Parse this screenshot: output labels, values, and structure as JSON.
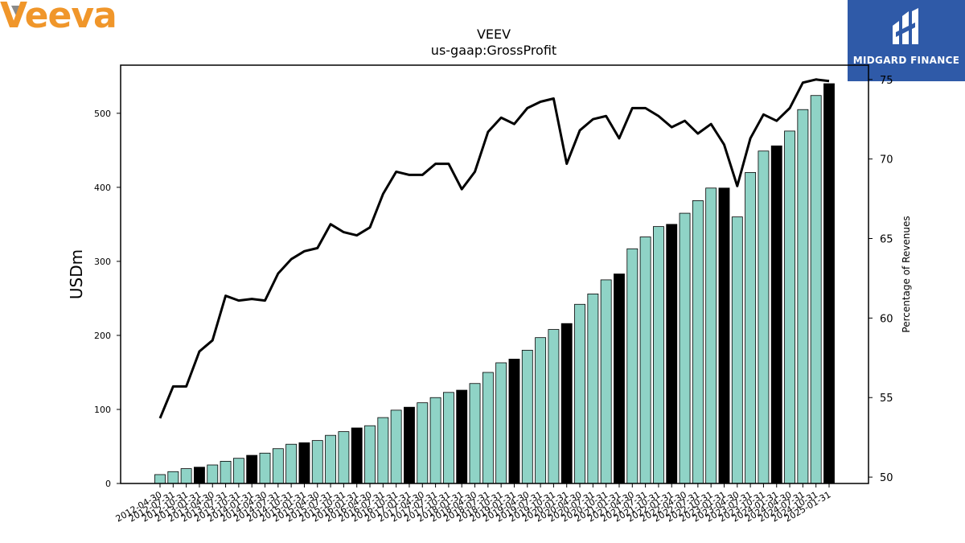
{
  "logos": {
    "left": "Veeva",
    "right": "MIDGARD FINANCE"
  },
  "colors": {
    "bar_normal": "#8fd3c6",
    "bar_highlight": "#000000",
    "line": "#000000",
    "veeva_orange": "#f0962a",
    "midgard_blue": "#2f5aa8"
  },
  "chart_data": {
    "type": "bar",
    "title": "VEEV",
    "subtitle": "us-gaap:GrossProfit",
    "ylabel": "USDm",
    "y2label": "Percentage of Revenues",
    "ylim": [
      0,
      565
    ],
    "y2lim": [
      49.6,
      75.9
    ],
    "yticks": [
      0,
      100,
      200,
      300,
      400,
      500
    ],
    "y2ticks": [
      50,
      55,
      60,
      65,
      70,
      75
    ],
    "grid": false,
    "categories": [
      "2012-04-30",
      "2012-07-31",
      "2012-10-31",
      "2013-01-31",
      "2013-04-30",
      "2013-07-31",
      "2013-10-31",
      "2014-01-31",
      "2014-04-30",
      "2014-07-31",
      "2014-10-31",
      "2015-01-31",
      "2015-04-30",
      "2015-07-31",
      "2015-10-31",
      "2016-01-31",
      "2016-04-30",
      "2016-07-31",
      "2016-10-31",
      "2017-01-31",
      "2017-04-30",
      "2017-07-31",
      "2017-10-31",
      "2018-01-31",
      "2018-04-30",
      "2018-07-31",
      "2018-10-31",
      "2019-01-31",
      "2019-04-30",
      "2019-07-31",
      "2019-10-31",
      "2020-01-31",
      "2020-04-30",
      "2020-07-31",
      "2020-10-31",
      "2021-01-31",
      "2021-04-30",
      "2021-07-31",
      "2021-10-31",
      "2022-01-31",
      "2022-04-30",
      "2022-07-31",
      "2022-10-31",
      "2023-01-31",
      "2023-04-30",
      "2023-07-31",
      "2023-10-31",
      "2024-01-31",
      "2024-04-30",
      "2024-07-31",
      "2024-10-31",
      "2025-01-31"
    ],
    "series": [
      {
        "type": "bar",
        "values": [
          12,
          16,
          20,
          22,
          25,
          30,
          34,
          38,
          41,
          47,
          53,
          55,
          58,
          65,
          70,
          75,
          78,
          89,
          99,
          103,
          109,
          116,
          123,
          126,
          135,
          150,
          163,
          168,
          180,
          197,
          208,
          216,
          242,
          256,
          275,
          283,
          317,
          333,
          347,
          350,
          365,
          382,
          399,
          399,
          360,
          420,
          449,
          456,
          476,
          505,
          524,
          540
        ],
        "highlight": [
          false,
          false,
          false,
          true,
          false,
          false,
          false,
          true,
          false,
          false,
          false,
          true,
          false,
          false,
          false,
          true,
          false,
          false,
          false,
          true,
          false,
          false,
          false,
          true,
          false,
          false,
          false,
          true,
          false,
          false,
          false,
          true,
          false,
          false,
          false,
          true,
          false,
          false,
          false,
          true,
          false,
          false,
          false,
          true,
          false,
          false,
          false,
          true,
          false,
          false,
          false,
          true
        ]
      },
      {
        "type": "line",
        "axis": "right",
        "values": [
          53.7,
          55.7,
          55.7,
          57.9,
          58.6,
          61.4,
          61.1,
          61.2,
          61.1,
          62.8,
          63.7,
          64.2,
          64.4,
          65.9,
          65.4,
          65.2,
          65.7,
          67.8,
          69.2,
          69.0,
          69.0,
          69.7,
          69.7,
          68.1,
          69.2,
          71.7,
          72.6,
          72.2,
          73.2,
          73.6,
          73.8,
          69.7,
          71.8,
          72.5,
          72.7,
          71.3,
          73.2,
          73.2,
          72.7,
          72.0,
          72.4,
          71.6,
          72.2,
          70.9,
          68.3,
          71.3,
          72.8,
          72.4,
          73.2,
          74.8,
          75.0,
          74.9
        ]
      }
    ]
  }
}
